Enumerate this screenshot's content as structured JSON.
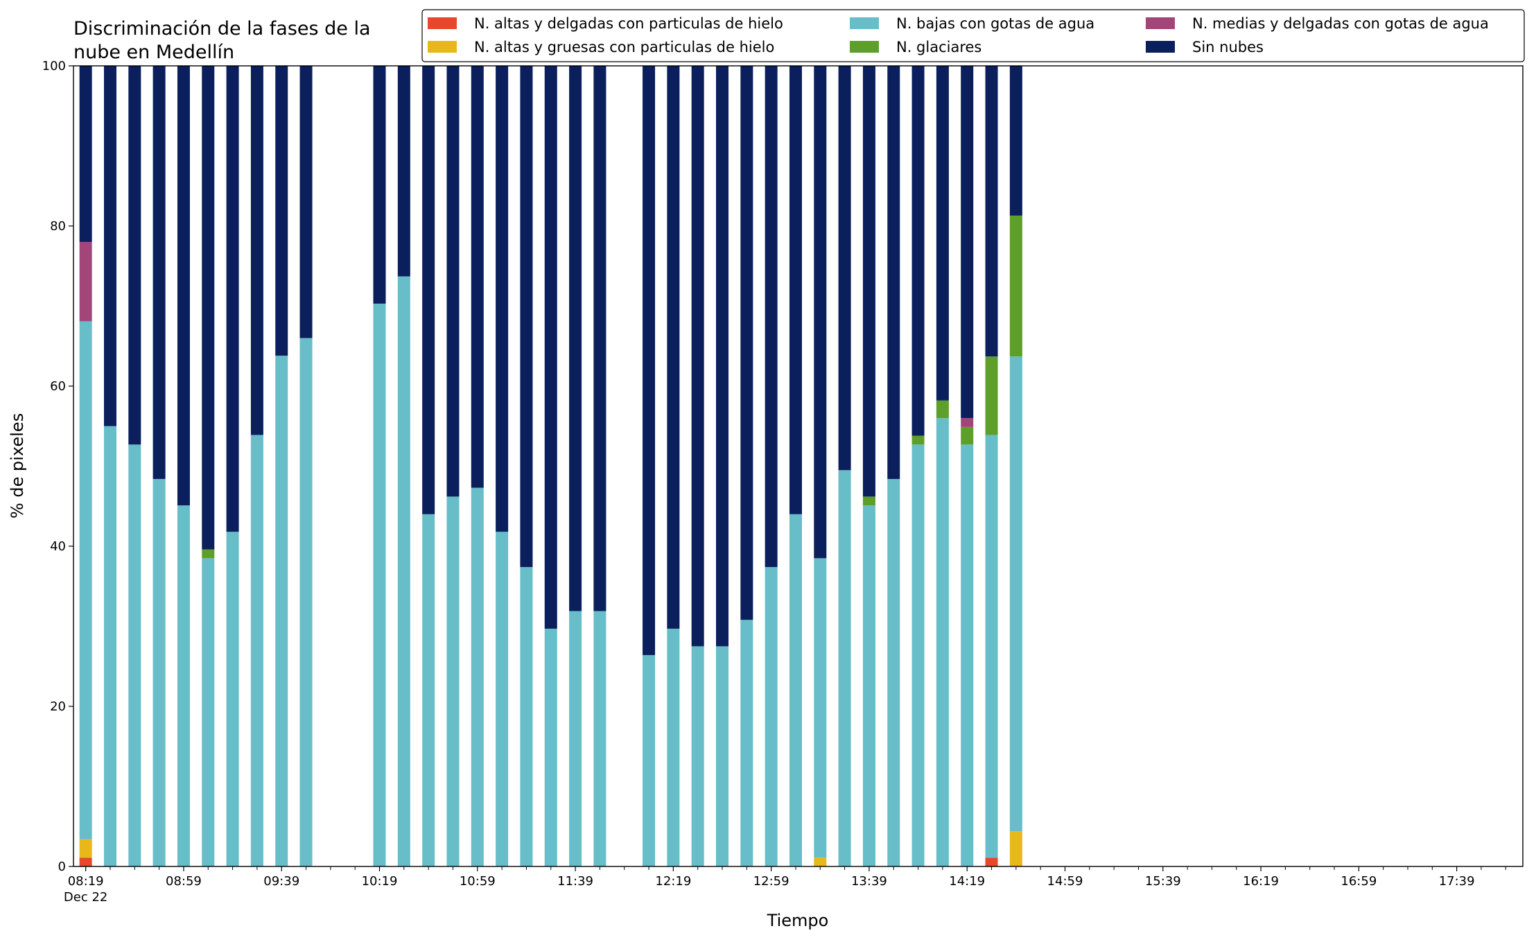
{
  "chart_data": {
    "type": "stacked_bar",
    "title": [
      "Discriminación de la fases de la",
      "nube en Medellín"
    ],
    "xlabel": "Tiempo",
    "ylabel": "% de pixeles",
    "x": [
      "08:19",
      "08:29",
      "08:39",
      "08:49",
      "08:59",
      "09:09",
      "09:19",
      "09:29",
      "09:39",
      "09:49",
      "10:19",
      "10:29",
      "10:39",
      "10:49",
      "10:59",
      "11:09",
      "11:19",
      "11:29",
      "11:39",
      "11:49",
      "12:09",
      "12:19",
      "12:29",
      "12:39",
      "12:49",
      "12:59",
      "13:09",
      "13:19",
      "13:29",
      "13:39",
      "13:49",
      "13:59",
      "14:09",
      "14:19",
      "14:29",
      "14:39"
    ],
    "series": [
      {
        "name": "N. altas y delgadas con particulas de hielo",
        "color": "#e8472b",
        "values": [
          1.1,
          0,
          0,
          0,
          0,
          0,
          0,
          0,
          0,
          0,
          0,
          0,
          0,
          0,
          0,
          0,
          0,
          0,
          0,
          0,
          0,
          0,
          0,
          0,
          0,
          0,
          0,
          0,
          0,
          0,
          0,
          0,
          0,
          0,
          1.1,
          0
        ]
      },
      {
        "name": "N. altas y gruesas con particulas de hielo",
        "color": "#e8b81a",
        "values": [
          2.3,
          0,
          0,
          0,
          0,
          0,
          0,
          0,
          0,
          0,
          0,
          0,
          0,
          0,
          0,
          0,
          0,
          0,
          0,
          0,
          0,
          0,
          0,
          0,
          0,
          0,
          0,
          1.1,
          0,
          0,
          0,
          0,
          0,
          0,
          0,
          4.4
        ]
      },
      {
        "name": "N. bajas con gotas de agua",
        "color": "#67bdc8",
        "values": [
          64.7,
          55.0,
          52.7,
          48.4,
          45.1,
          38.5,
          41.8,
          53.9,
          63.8,
          66.0,
          70.3,
          73.7,
          44.0,
          46.2,
          47.3,
          41.8,
          37.4,
          29.7,
          31.9,
          31.9,
          26.4,
          29.7,
          27.5,
          27.5,
          30.8,
          37.4,
          44.0,
          37.4,
          49.5,
          45.1,
          48.4,
          52.7,
          56.0,
          52.7,
          52.8,
          59.3
        ]
      },
      {
        "name": "N. glaciares",
        "color": "#5e9e2a",
        "values": [
          0,
          0,
          0,
          0,
          0,
          1.1,
          0,
          0,
          0,
          0,
          0,
          0,
          0,
          0,
          0,
          0,
          0,
          0,
          0,
          0,
          0,
          0,
          0,
          0,
          0,
          0,
          0,
          0,
          0,
          1.1,
          0,
          1.1,
          2.2,
          2.2,
          9.8,
          17.6
        ]
      },
      {
        "name": "N. medias y delgadas con gotas de agua",
        "color": "#a4457a",
        "values": [
          9.9,
          0,
          0,
          0,
          0,
          0,
          0,
          0,
          0,
          0,
          0,
          0,
          0,
          0,
          0,
          0,
          0,
          0,
          0,
          0,
          0,
          0,
          0,
          0,
          0,
          0,
          0,
          0,
          0,
          0,
          0,
          0,
          0,
          1.1,
          0,
          0
        ]
      },
      {
        "name": "Sin nubes",
        "color": "#0a1f5c",
        "values": [
          22.0,
          45.0,
          47.3,
          51.6,
          54.9,
          60.4,
          58.2,
          46.1,
          36.2,
          34.0,
          29.7,
          26.3,
          56.0,
          53.8,
          52.7,
          58.2,
          62.6,
          70.3,
          68.1,
          68.1,
          73.6,
          70.3,
          72.5,
          72.5,
          69.2,
          62.6,
          56.0,
          61.5,
          50.5,
          53.8,
          51.6,
          46.2,
          41.8,
          44.0,
          36.3,
          18.7
        ]
      }
    ],
    "xlim": [
      "08:14",
      "18:06"
    ],
    "xticks": [
      "08:19",
      "08:59",
      "09:39",
      "10:19",
      "10:59",
      "11:39",
      "12:19",
      "12:59",
      "13:39",
      "14:19",
      "14:59",
      "15:39",
      "16:19",
      "16:59",
      "17:39"
    ],
    "x_date_label": "Dec 22",
    "xticks_minor": [
      "08:29",
      "08:39",
      "08:49",
      "09:09",
      "09:19",
      "09:29",
      "09:49",
      "09:59",
      "10:09",
      "10:29",
      "10:39",
      "10:49",
      "11:09",
      "11:19",
      "11:29",
      "11:49",
      "11:59",
      "12:09",
      "12:29",
      "12:39",
      "12:49",
      "13:09",
      "13:19",
      "13:29",
      "13:49",
      "13:59",
      "14:09",
      "14:29",
      "14:39",
      "14:49",
      "15:09",
      "15:19",
      "15:29",
      "15:49",
      "15:59",
      "16:09",
      "16:29",
      "16:39",
      "16:49",
      "17:09",
      "17:19",
      "17:29",
      "17:49",
      "17:59"
    ],
    "ylim": [
      0,
      100
    ],
    "yticks": [
      0,
      20,
      40,
      60,
      80,
      100
    ],
    "grid": false,
    "legend": "top"
  }
}
